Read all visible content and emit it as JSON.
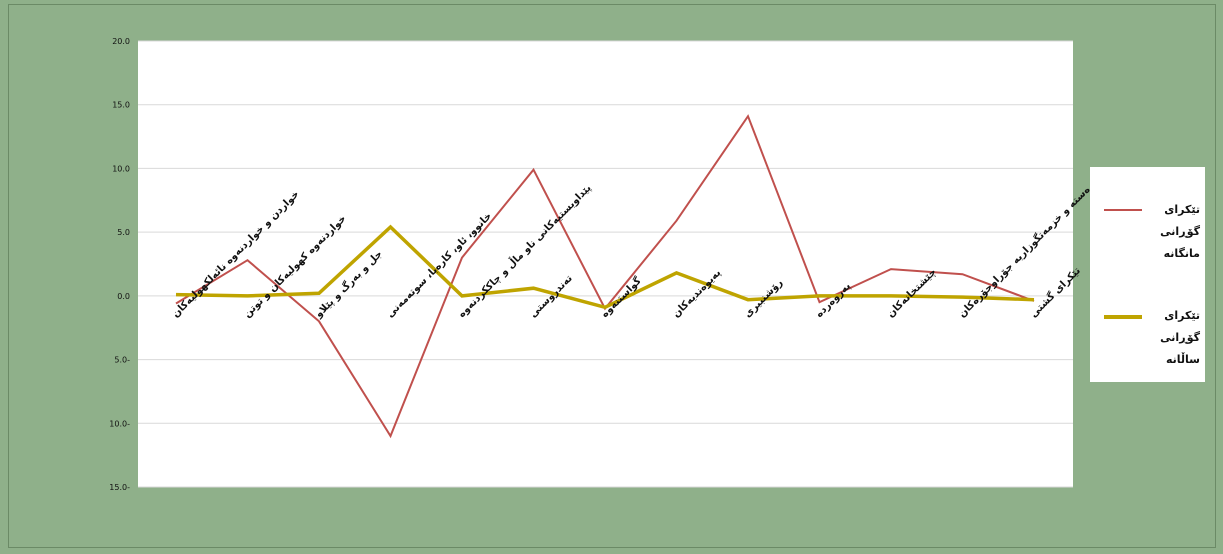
{
  "chart_data": {
    "type": "line",
    "title": "",
    "xlabel": "",
    "ylabel": "",
    "ylim": [
      -15,
      20
    ],
    "yticks": [
      "20.0",
      "15.0",
      "10.0",
      "5.0",
      "0.0",
      "5.0-",
      "10.0-",
      "15.0-"
    ],
    "ytick_values": [
      20,
      15,
      10,
      5,
      0,
      -5,
      -10,
      -15
    ],
    "grid": true,
    "legend_position": "right",
    "categories": [
      "خواردن و خواردنەوە نائەلکهولیەکان",
      "خواردنەوە کهولیەکان و توتن",
      "جل و بەرگ و پێلاو",
      "خانوو، ئاو، کارەبا، سوتەمەنی",
      "پێداویستیەکانی ناو ماڵ و چاککردنەوە",
      "تەندروستی",
      "گواستنەوە",
      "پەیوەندیەکان",
      "رۆشنبیری",
      "پەروەردە",
      "چێشتخانەکان",
      "کەرەستە و خزمەتگوزاریە جۆراوجۆرەکان",
      "تێکرای گشتی"
    ],
    "series": [
      {
        "name": "تێکرای گۆڕانی مانگانە",
        "color": "#c0504d",
        "values": [
          -0.6,
          2.8,
          -2.0,
          -11.0,
          3.0,
          9.9,
          -1.0,
          5.9,
          14.1,
          -0.5,
          2.1,
          1.7,
          -0.4
        ]
      },
      {
        "name": "تێکرای گۆڕانی ساڵانە",
        "color": "#bfa400",
        "values": [
          0.1,
          0.0,
          0.2,
          5.4,
          0.0,
          0.6,
          -0.9,
          1.8,
          -0.3,
          0.0,
          0.0,
          -0.1,
          -0.3
        ]
      }
    ]
  },
  "legend": {
    "items": [
      {
        "line1": "تێکرای گۆڕانی",
        "line2": "مانگانە",
        "color": "#c0504d"
      },
      {
        "line1": "تێکرای گۆڕانی",
        "line2": "ساڵانە",
        "color": "#bfa400"
      }
    ]
  }
}
